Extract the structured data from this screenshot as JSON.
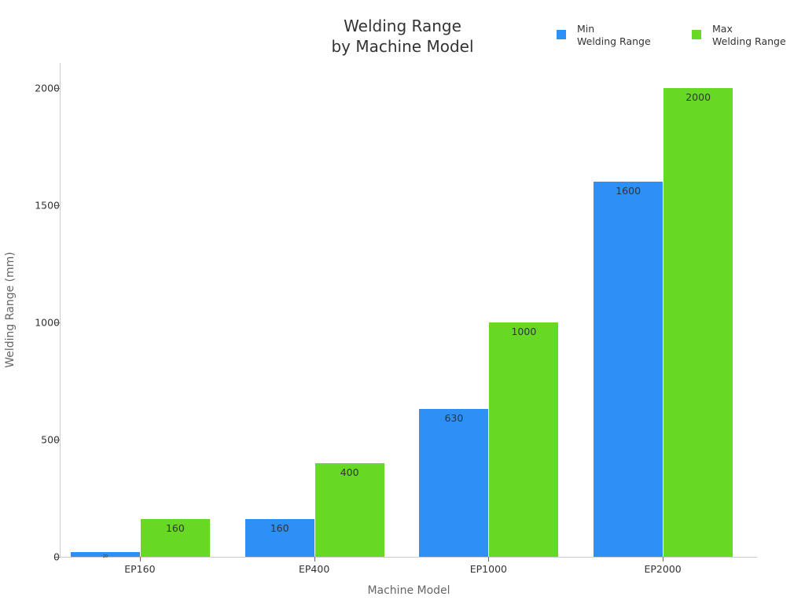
{
  "chart_data": {
    "type": "bar",
    "title": "Welding Range\nby Machine Model",
    "title_lines": [
      "Welding Range",
      "by Machine Model"
    ],
    "xlabel": "Machine Model",
    "ylabel": "Welding Range (mm)",
    "categories": [
      "EP160",
      "EP400",
      "EP1000",
      "EP2000"
    ],
    "series": [
      {
        "name": "Min\nWelding Range",
        "label_lines": [
          "Min",
          "Welding Range"
        ],
        "color": "#2e90f5",
        "values": [
          20,
          160,
          630,
          1600
        ]
      },
      {
        "name": "Max\nWelding Range",
        "label_lines": [
          "Max",
          "Welding Range"
        ],
        "color": "#66d925",
        "values": [
          160,
          400,
          1000,
          2000
        ]
      }
    ],
    "yticks": [
      0,
      500,
      1000,
      1500,
      2000
    ],
    "ylim": [
      0,
      2100
    ],
    "grid": false,
    "legend_position": "top-right"
  },
  "labels": {
    "title_line1": "Welding Range",
    "title_line2": "by Machine Model",
    "xlabel": "Machine Model",
    "ylabel": "Welding Range (mm)",
    "legend_min_1": "Min",
    "legend_min_2": "Welding Range",
    "legend_max_1": "Max",
    "legend_max_2": "Welding Range"
  }
}
